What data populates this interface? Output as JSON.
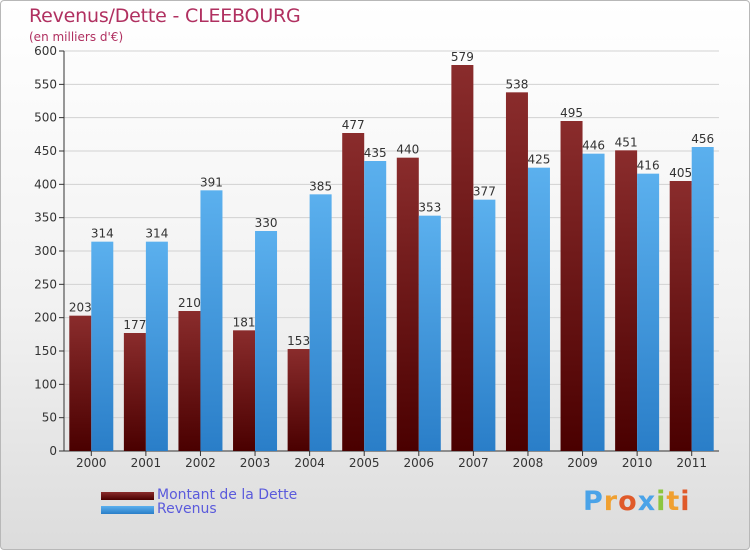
{
  "header": {
    "title": "Revenus/Dette - CLEEBOURG",
    "subtitle": "(en milliers d'€)"
  },
  "legend": [
    {
      "label": "Montant de la Dette",
      "color": "#7a1a1a"
    },
    {
      "label": "Revenus",
      "color": "#4aa3e8"
    }
  ],
  "logo": {
    "text": "Proxiti",
    "letters": [
      {
        "ch": "P",
        "color": "#4aa3e8"
      },
      {
        "ch": "r",
        "color": "#f0a030"
      },
      {
        "ch": "o",
        "color": "#e05a2a"
      },
      {
        "ch": "x",
        "color": "#4aa3e8"
      },
      {
        "ch": "i",
        "color": "#8cc63f"
      },
      {
        "ch": "t",
        "color": "#f0a030"
      },
      {
        "ch": "i",
        "color": "#e05a2a"
      }
    ]
  },
  "chart_data": {
    "type": "bar",
    "categories": [
      "2000",
      "2001",
      "2002",
      "2003",
      "2004",
      "2005",
      "2006",
      "2007",
      "2008",
      "2009",
      "2010",
      "2011"
    ],
    "series": [
      {
        "name": "Montant de la Dette",
        "values": [
          203,
          177,
          210,
          181,
          153,
          477,
          440,
          579,
          538,
          495,
          451,
          405
        ],
        "color": "#7a1a1a"
      },
      {
        "name": "Revenus",
        "values": [
          314,
          314,
          391,
          330,
          385,
          435,
          353,
          377,
          425,
          446,
          416,
          456
        ],
        "color": "#4aa3e8"
      }
    ],
    "yticks": [
      0,
      50,
      100,
      150,
      200,
      250,
      300,
      350,
      400,
      450,
      500,
      550,
      600
    ],
    "ylim": [
      0,
      600
    ],
    "grid": true,
    "legend_position": "bottom-left"
  }
}
